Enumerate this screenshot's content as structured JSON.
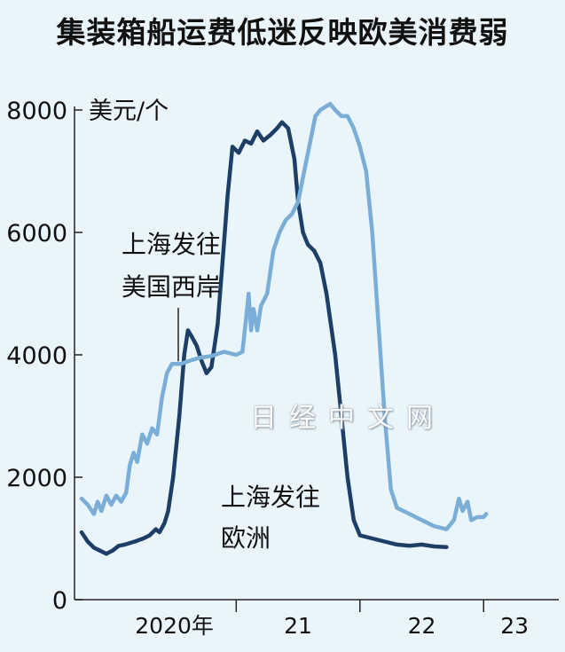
{
  "title": "集装箱船运费低迷反映欧美消费弱",
  "watermark": "日经中文网",
  "chart_data": {
    "type": "line",
    "y_unit_label": "美元/个",
    "ylim": [
      0,
      8000
    ],
    "y_ticks": [
      0,
      2000,
      4000,
      6000,
      8000
    ],
    "x_ticks": [
      {
        "label": "2020年",
        "position": 2020.5
      },
      {
        "label": "21",
        "position": 2021.5
      },
      {
        "label": "22",
        "position": 2022.5
      },
      {
        "label": "23",
        "position": 2023.25
      }
    ],
    "year_separators": [
      2021,
      2022,
      2023
    ],
    "xlim": [
      2019.7,
      2023.5
    ],
    "colors": {
      "us_west": "#7aaed6",
      "europe": "#1d3e66"
    },
    "series": [
      {
        "name": "上海发往美国西岸",
        "label_lines": [
          "上海发往",
          "美国西岸"
        ],
        "color_key": "us_west",
        "points": [
          [
            2019.75,
            1650
          ],
          [
            2019.8,
            1550
          ],
          [
            2019.85,
            1400
          ],
          [
            2019.88,
            1600
          ],
          [
            2019.91,
            1450
          ],
          [
            2019.95,
            1700
          ],
          [
            2019.99,
            1550
          ],
          [
            2020.03,
            1700
          ],
          [
            2020.07,
            1600
          ],
          [
            2020.11,
            1750
          ],
          [
            2020.14,
            2200
          ],
          [
            2020.17,
            2400
          ],
          [
            2020.2,
            2250
          ],
          [
            2020.24,
            2700
          ],
          [
            2020.28,
            2550
          ],
          [
            2020.32,
            2800
          ],
          [
            2020.36,
            2700
          ],
          [
            2020.4,
            3300
          ],
          [
            2020.44,
            3700
          ],
          [
            2020.48,
            3850
          ],
          [
            2020.55,
            3850
          ],
          [
            2020.62,
            3900
          ],
          [
            2020.7,
            3950
          ],
          [
            2020.8,
            3980
          ],
          [
            2020.9,
            4050
          ],
          [
            2021.0,
            4000
          ],
          [
            2021.05,
            4050
          ],
          [
            2021.08,
            4600
          ],
          [
            2021.1,
            5000
          ],
          [
            2021.12,
            4400
          ],
          [
            2021.14,
            4750
          ],
          [
            2021.17,
            4400
          ],
          [
            2021.2,
            4800
          ],
          [
            2021.25,
            5000
          ],
          [
            2021.3,
            5700
          ],
          [
            2021.35,
            6000
          ],
          [
            2021.4,
            6200
          ],
          [
            2021.45,
            6300
          ],
          [
            2021.5,
            6500
          ],
          [
            2021.55,
            7000
          ],
          [
            2021.6,
            7500
          ],
          [
            2021.64,
            7900
          ],
          [
            2021.68,
            8000
          ],
          [
            2021.72,
            8050
          ],
          [
            2021.76,
            8100
          ],
          [
            2021.8,
            8000
          ],
          [
            2021.85,
            7900
          ],
          [
            2021.9,
            7900
          ],
          [
            2021.95,
            7700
          ],
          [
            2022.0,
            7400
          ],
          [
            2022.05,
            7000
          ],
          [
            2022.1,
            6000
          ],
          [
            2022.15,
            4500
          ],
          [
            2022.2,
            3000
          ],
          [
            2022.25,
            1800
          ],
          [
            2022.3,
            1500
          ],
          [
            2022.4,
            1400
          ],
          [
            2022.5,
            1300
          ],
          [
            2022.6,
            1200
          ],
          [
            2022.7,
            1150
          ],
          [
            2022.76,
            1300
          ],
          [
            2022.8,
            1650
          ],
          [
            2022.83,
            1450
          ],
          [
            2022.87,
            1600
          ],
          [
            2022.9,
            1300
          ],
          [
            2022.95,
            1350
          ],
          [
            2023.0,
            1350
          ],
          [
            2023.02,
            1400
          ]
        ]
      },
      {
        "name": "上海发往欧洲",
        "label_lines": [
          "上海发往",
          "欧洲"
        ],
        "color_key": "europe",
        "points": [
          [
            2019.75,
            1100
          ],
          [
            2019.8,
            950
          ],
          [
            2019.85,
            850
          ],
          [
            2019.9,
            800
          ],
          [
            2019.95,
            750
          ],
          [
            2020.0,
            800
          ],
          [
            2020.05,
            880
          ],
          [
            2020.1,
            900
          ],
          [
            2020.18,
            950
          ],
          [
            2020.25,
            1000
          ],
          [
            2020.3,
            1050
          ],
          [
            2020.35,
            1150
          ],
          [
            2020.38,
            1100
          ],
          [
            2020.42,
            1250
          ],
          [
            2020.45,
            1450
          ],
          [
            2020.49,
            2000
          ],
          [
            2020.54,
            3000
          ],
          [
            2020.58,
            4000
          ],
          [
            2020.61,
            4400
          ],
          [
            2020.64,
            4300
          ],
          [
            2020.68,
            4150
          ],
          [
            2020.72,
            3900
          ],
          [
            2020.76,
            3700
          ],
          [
            2020.8,
            3800
          ],
          [
            2020.85,
            4500
          ],
          [
            2020.9,
            5800
          ],
          [
            2020.93,
            6600
          ],
          [
            2020.97,
            7400
          ],
          [
            2021.02,
            7300
          ],
          [
            2021.07,
            7500
          ],
          [
            2021.12,
            7450
          ],
          [
            2021.17,
            7650
          ],
          [
            2021.22,
            7500
          ],
          [
            2021.28,
            7600
          ],
          [
            2021.33,
            7700
          ],
          [
            2021.37,
            7800
          ],
          [
            2021.42,
            7700
          ],
          [
            2021.47,
            7200
          ],
          [
            2021.5,
            6500
          ],
          [
            2021.54,
            6000
          ],
          [
            2021.58,
            5800
          ],
          [
            2021.63,
            5700
          ],
          [
            2021.68,
            5500
          ],
          [
            2021.73,
            5000
          ],
          [
            2021.8,
            4000
          ],
          [
            2021.85,
            3000
          ],
          [
            2021.9,
            2000
          ],
          [
            2021.95,
            1300
          ],
          [
            2022.0,
            1050
          ],
          [
            2022.1,
            1000
          ],
          [
            2022.2,
            950
          ],
          [
            2022.3,
            900
          ],
          [
            2022.4,
            880
          ],
          [
            2022.5,
            900
          ],
          [
            2022.6,
            870
          ],
          [
            2022.7,
            860
          ]
        ]
      }
    ]
  }
}
